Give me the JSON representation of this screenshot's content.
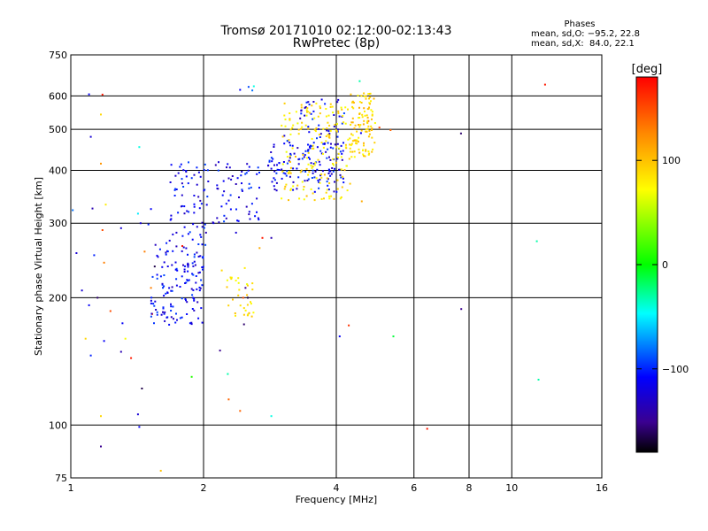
{
  "header": {
    "title_line1": "Tromsø 20171010 02:12:00-02:13:43",
    "title_line2": "RwPretec (8p)"
  },
  "phases": {
    "heading": "Phases",
    "line_o": "mean, sd,O: −95.2, 22.8",
    "line_x": "mean, sd,X:  84.0, 22.1"
  },
  "colorbar": {
    "unit": "[deg]",
    "ticks": [
      "100",
      "0",
      "−100"
    ],
    "tick_values": [
      100,
      0,
      -100
    ],
    "range": [
      -180,
      180
    ],
    "colors": [
      "#ff0000",
      "#ff8800",
      "#ffff00",
      "#00ff00",
      "#00ffff",
      "#0000ff",
      "#000000"
    ]
  },
  "chart_data": {
    "type": "scatter",
    "xlabel": "Frequency [MHz]",
    "ylabel": "Stationary phase Virtual Height [km]",
    "x_scale": "log",
    "y_scale": "log",
    "xlim": [
      1,
      16
    ],
    "ylim": [
      75,
      750
    ],
    "x_ticks": [
      1,
      2,
      4,
      6,
      8,
      10,
      16
    ],
    "x_tick_labels": [
      "1",
      "2",
      "4",
      "6",
      "8",
      "10",
      "16"
    ],
    "y_ticks": [
      75,
      100,
      200,
      300,
      400,
      500,
      600,
      750
    ],
    "y_tick_labels": [
      "75",
      "100",
      "200",
      "300",
      "400",
      "500",
      "600",
      "750"
    ],
    "grid": true,
    "series": [
      {
        "points": [
          [
            1.1,
            605,
            -110
          ],
          [
            1.18,
            604,
            170
          ],
          [
            1.11,
            480,
            -120
          ],
          [
            1.17,
            542,
            90
          ],
          [
            1.17,
            415,
            120
          ],
          [
            1.01,
            322,
            -80
          ],
          [
            1.12,
            325,
            -130
          ],
          [
            1.2,
            332,
            80
          ],
          [
            1.18,
            289,
            150
          ],
          [
            1.03,
            255,
            -120
          ],
          [
            1.13,
            252,
            -100
          ],
          [
            1.19,
            242,
            130
          ],
          [
            1.3,
            292,
            -120
          ],
          [
            1.06,
            208,
            -120
          ],
          [
            1.15,
            200,
            -150
          ],
          [
            1.1,
            192,
            -110
          ],
          [
            1.23,
            186,
            150
          ],
          [
            1.31,
            174,
            -110
          ],
          [
            1.08,
            160,
            90
          ],
          [
            1.19,
            158,
            -110
          ],
          [
            1.33,
            160,
            70
          ],
          [
            1.11,
            146,
            -100
          ],
          [
            1.3,
            149,
            -130
          ],
          [
            1.37,
            144,
            170
          ],
          [
            1.45,
            122,
            -160
          ],
          [
            1.42,
            106,
            -120
          ],
          [
            1.43,
            99,
            -110
          ],
          [
            1.17,
            105,
            90
          ],
          [
            1.17,
            89,
            -140
          ],
          [
            1.6,
            78,
            100
          ],
          [
            1.43,
            454,
            -40
          ],
          [
            1.42,
            316,
            -50
          ],
          [
            1.52,
            324,
            -110
          ],
          [
            1.44,
            300,
            -120
          ],
          [
            1.5,
            298,
            -100
          ],
          [
            1.47,
            257,
            130
          ],
          [
            1.52,
            211,
            130
          ],
          [
            1.55,
            237,
            -160
          ],
          [
            1.53,
            183,
            160
          ],
          [
            1.79,
            265,
            170
          ],
          [
            2.37,
            285,
            -120
          ],
          [
            2.42,
            620,
            -110
          ],
          [
            2.53,
            630,
            -90
          ],
          [
            2.58,
            618,
            -80
          ],
          [
            2.6,
            632,
            -40
          ],
          [
            1.88,
            130,
            10
          ],
          [
            2.18,
            150,
            -140
          ],
          [
            2.28,
            115,
            140
          ],
          [
            2.42,
            108,
            140
          ],
          [
            2.27,
            132,
            -30
          ],
          [
            2.47,
            173,
            -150
          ],
          [
            2.33,
            198,
            100
          ],
          [
            2.2,
            232,
            90
          ],
          [
            2.46,
            200,
            150
          ],
          [
            2.49,
            211,
            -140
          ],
          [
            2.52,
            200,
            -160
          ],
          [
            2.68,
            262,
            110
          ],
          [
            2.72,
            277,
            170
          ],
          [
            2.48,
            235,
            80
          ],
          [
            2.85,
            105,
            -40
          ],
          [
            2.85,
            277,
            -130
          ],
          [
            4.07,
            162,
            -110
          ],
          [
            4.27,
            172,
            160
          ],
          [
            4.55,
            490,
            -110
          ],
          [
            4.57,
            338,
            110
          ],
          [
            4.52,
            650,
            -30
          ],
          [
            5.01,
            505,
            150
          ],
          [
            5.31,
            498,
            140
          ],
          [
            5.39,
            162,
            -10
          ],
          [
            6.43,
            98,
            170
          ],
          [
            7.67,
            489,
            -150
          ],
          [
            7.68,
            188,
            -140
          ],
          [
            11.4,
            272,
            -30
          ],
          [
            11.5,
            128,
            -30
          ],
          [
            11.9,
            638,
            170
          ],
          [
            4.73,
            523,
            160
          ],
          [
            3.05,
            483,
            -120
          ],
          [
            3.1,
            470,
            -60
          ]
        ]
      },
      {
        "name_hidden": "",
        "cluster_o1": [
          1.52,
          2.0,
          172,
          275,
          -110,
          140
        ]
      },
      {
        "cluster_o2": [
          1.68,
          2.05,
          265,
          420,
          -110,
          70
        ]
      },
      {
        "cluster_o3": [
          2.1,
          2.72,
          300,
          430,
          -110,
          60
        ]
      },
      {
        "cluster_o4": [
          2.8,
          4.2,
          355,
          470,
          -110,
          130
        ]
      },
      {
        "cluster_o5": [
          3.3,
          4.2,
          440,
          590,
          -110,
          50
        ]
      },
      {
        "cluster_x1": [
          3.0,
          4.3,
          340,
          580,
          85,
          170
        ]
      },
      {
        "cluster_x2": [
          4.3,
          4.9,
          430,
          610,
          90,
          110
        ]
      },
      {
        "cluster_x3": [
          2.25,
          2.6,
          180,
          225,
          85,
          30
        ]
      }
    ]
  }
}
